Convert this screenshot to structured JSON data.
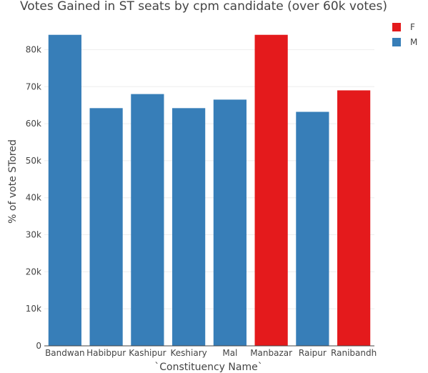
{
  "chart_data": {
    "type": "bar",
    "title": "Votes Gained in ST seats by cpm candidate (over 60k votes)",
    "xlabel": "`Constituency Name`",
    "ylabel": "% of vote STored",
    "categories": [
      "Bandwan",
      "Habibpur",
      "Kashipur",
      "Keshiary",
      "Mal",
      "Manbazar",
      "Raipur",
      "Ranibandh"
    ],
    "values": [
      84000,
      64200,
      68000,
      64200,
      66500,
      84000,
      63200,
      69000
    ],
    "groups": [
      "M",
      "M",
      "M",
      "M",
      "M",
      "F",
      "M",
      "F"
    ],
    "ylim": [
      0,
      88000
    ],
    "yticks": [
      0,
      10000,
      20000,
      30000,
      40000,
      50000,
      60000,
      70000,
      80000
    ],
    "ytick_labels": [
      "0",
      "10k",
      "20k",
      "30k",
      "40k",
      "50k",
      "60k",
      "70k",
      "80k"
    ],
    "legend": [
      {
        "name": "F",
        "color": "#e41a1c"
      },
      {
        "name": "M",
        "color": "#377eb8"
      }
    ],
    "legend_position": "top-right",
    "grid": true
  }
}
